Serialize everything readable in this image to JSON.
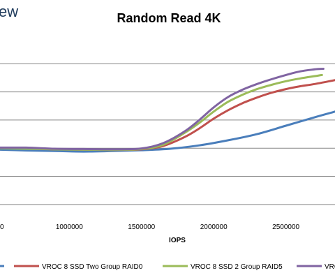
{
  "logo_text": "ew",
  "chart_data": {
    "type": "line",
    "title": "Random Read 4K",
    "xlabel": "IOPS",
    "ylabel": "",
    "x_ticks": [
      1000000,
      1500000,
      2000000,
      2500000
    ],
    "x_tick_labels": [
      "1000000",
      "1500000",
      "2000000",
      "2500000"
    ],
    "x_partial_tick_label": "0",
    "xlim": [
      520000,
      2840000
    ],
    "ylim": [
      -0.4,
      5.9
    ],
    "y_gridlines": [
      0,
      1,
      2,
      3,
      4,
      5
    ],
    "grid": "horizontal",
    "legend_position": "bottom",
    "series": [
      {
        "name": "",
        "color": "#4a7ebb",
        "points": [
          [
            500000,
            1.95
          ],
          [
            700000,
            1.92
          ],
          [
            900000,
            1.9
          ],
          [
            1100000,
            1.88
          ],
          [
            1300000,
            1.9
          ],
          [
            1500000,
            1.93
          ],
          [
            1700000,
            1.98
          ],
          [
            1900000,
            2.1
          ],
          [
            2100000,
            2.28
          ],
          [
            2300000,
            2.5
          ],
          [
            2500000,
            2.8
          ],
          [
            2700000,
            3.1
          ],
          [
            2840000,
            3.3
          ]
        ]
      },
      {
        "name": "VROC 8 SSD Two Group RAID0",
        "color": "#c0504d",
        "points": [
          [
            500000,
            2.0
          ],
          [
            700000,
            2.0
          ],
          [
            900000,
            1.96
          ],
          [
            1100000,
            1.95
          ],
          [
            1300000,
            1.94
          ],
          [
            1500000,
            1.96
          ],
          [
            1650000,
            2.08
          ],
          [
            1800000,
            2.4
          ],
          [
            1900000,
            2.7
          ],
          [
            2000000,
            3.05
          ],
          [
            2100000,
            3.35
          ],
          [
            2200000,
            3.6
          ],
          [
            2300000,
            3.8
          ],
          [
            2400000,
            3.97
          ],
          [
            2500000,
            4.1
          ],
          [
            2600000,
            4.2
          ],
          [
            2700000,
            4.28
          ],
          [
            2840000,
            4.42
          ]
        ]
      },
      {
        "name": "VROC 8 SSD 2 Group RAID5",
        "color": "#9bbb59",
        "points": [
          [
            500000,
            2.0
          ],
          [
            700000,
            1.98
          ],
          [
            900000,
            1.96
          ],
          [
            1100000,
            1.95
          ],
          [
            1300000,
            1.94
          ],
          [
            1500000,
            1.97
          ],
          [
            1650000,
            2.12
          ],
          [
            1800000,
            2.55
          ],
          [
            1900000,
            2.9
          ],
          [
            2000000,
            3.3
          ],
          [
            2100000,
            3.65
          ],
          [
            2200000,
            3.9
          ],
          [
            2300000,
            4.1
          ],
          [
            2400000,
            4.25
          ],
          [
            2500000,
            4.38
          ],
          [
            2600000,
            4.48
          ],
          [
            2700000,
            4.56
          ],
          [
            2750000,
            4.6
          ]
        ]
      },
      {
        "name": "VROC",
        "color": "#8064a2",
        "points": [
          [
            500000,
            2.02
          ],
          [
            700000,
            2.02
          ],
          [
            900000,
            1.98
          ],
          [
            1100000,
            1.97
          ],
          [
            1300000,
            1.96
          ],
          [
            1500000,
            1.99
          ],
          [
            1650000,
            2.18
          ],
          [
            1800000,
            2.6
          ],
          [
            1900000,
            3.0
          ],
          [
            2000000,
            3.45
          ],
          [
            2100000,
            3.82
          ],
          [
            2200000,
            4.08
          ],
          [
            2300000,
            4.28
          ],
          [
            2400000,
            4.45
          ],
          [
            2500000,
            4.6
          ],
          [
            2600000,
            4.73
          ],
          [
            2700000,
            4.8
          ],
          [
            2760000,
            4.82
          ]
        ]
      }
    ]
  }
}
